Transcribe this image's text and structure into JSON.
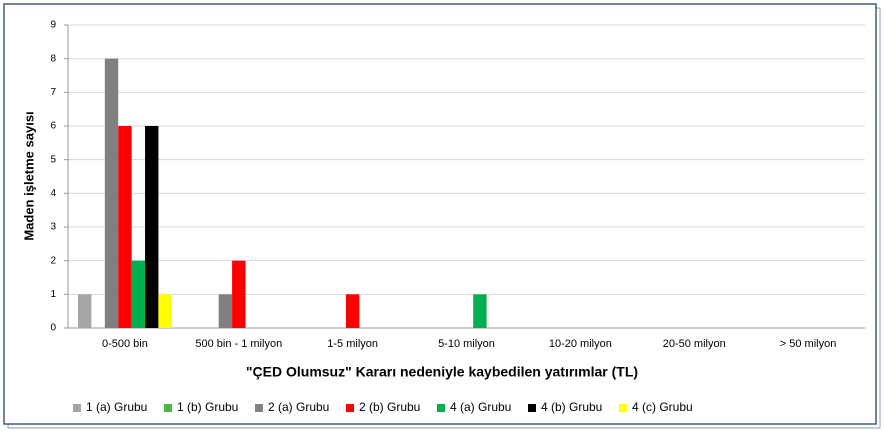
{
  "chart_data": {
    "type": "bar",
    "xlabel": "\"ÇED Olumsuz\" Kararı nedeniyle kaybedilen yatırımlar  (TL)",
    "ylabel": "Maden işletme sayısı",
    "categories": [
      "0-500 bin",
      "500 bin - 1 milyon",
      "1-5 milyon",
      "5-10 milyon",
      "10-20 milyon",
      "20-50 milyon",
      "> 50 milyon"
    ],
    "series": [
      {
        "name": "1 (a) Grubu",
        "color": "#a6a6a6",
        "values": [
          1,
          0,
          0,
          0,
          0,
          0,
          0
        ]
      },
      {
        "name": "1 (b) Grubu",
        "color": "#4db848",
        "values": [
          0,
          0,
          0,
          0,
          0,
          0,
          0
        ]
      },
      {
        "name": "2 (a) Grubu",
        "color": "#808080",
        "values": [
          8,
          1,
          0,
          0,
          0,
          0,
          0
        ]
      },
      {
        "name": "2 (b) Grubu",
        "color": "#ff0000",
        "values": [
          6,
          2,
          1,
          0,
          0,
          0,
          0
        ]
      },
      {
        "name": "4 (a) Grubu",
        "color": "#00b050",
        "values": [
          2,
          0,
          0,
          1,
          0,
          0,
          0
        ]
      },
      {
        "name": "4 (b) Grubu",
        "color": "#000000",
        "values": [
          6,
          0,
          0,
          0,
          0,
          0,
          0
        ]
      },
      {
        "name": "4 (c) Grubu",
        "color": "#ffff00",
        "values": [
          1,
          0,
          0,
          0,
          0,
          0,
          0
        ]
      }
    ],
    "ylim": [
      0,
      9
    ],
    "yticks": [
      0,
      1,
      2,
      3,
      4,
      5,
      6,
      7,
      8,
      9
    ],
    "grid": true,
    "legend": "bottom"
  }
}
